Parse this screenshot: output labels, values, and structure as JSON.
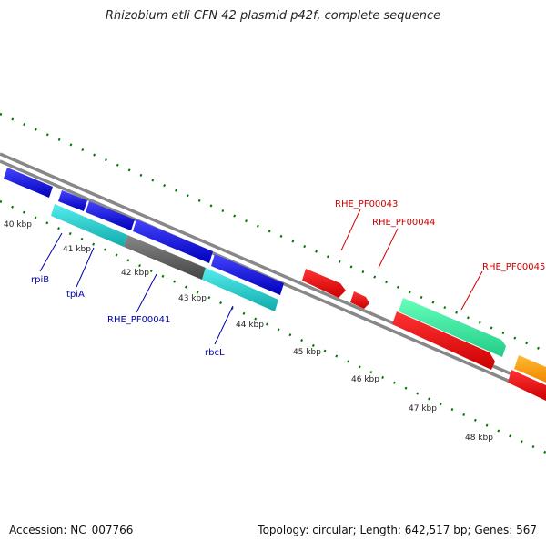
{
  "title": "Rhizobium etli CFN 42 plasmid p42f, complete sequence",
  "footer": {
    "accession": "Accession: NC_007766",
    "summary": "Topology: circular; Length: 642,517 bp; Genes: 567"
  },
  "ticks": [
    "40 kbp",
    "41 kbp",
    "42 kbp",
    "43 kbp",
    "44 kbp",
    "45 kbp",
    "46 kbp",
    "47 kbp",
    "48 kbp"
  ],
  "gene_labels": {
    "rpiB": "rpiB",
    "tpiA": "tpiA",
    "rhe41": "RHE_PF00041",
    "rbcL": "rbcL",
    "rhe43": "RHE_PF00043",
    "rhe44": "RHE_PF00044",
    "rhe45": "RHE_PF00045"
  },
  "colors": {
    "blue": "#0000dd",
    "cyan": "#22cccc",
    "gray": "#666666",
    "red": "#ee0000",
    "green": "#33ee99",
    "orange": "#ff9900",
    "tick_green": "#007700",
    "label_blue": "#0000aa",
    "label_red": "#cc0000"
  }
}
